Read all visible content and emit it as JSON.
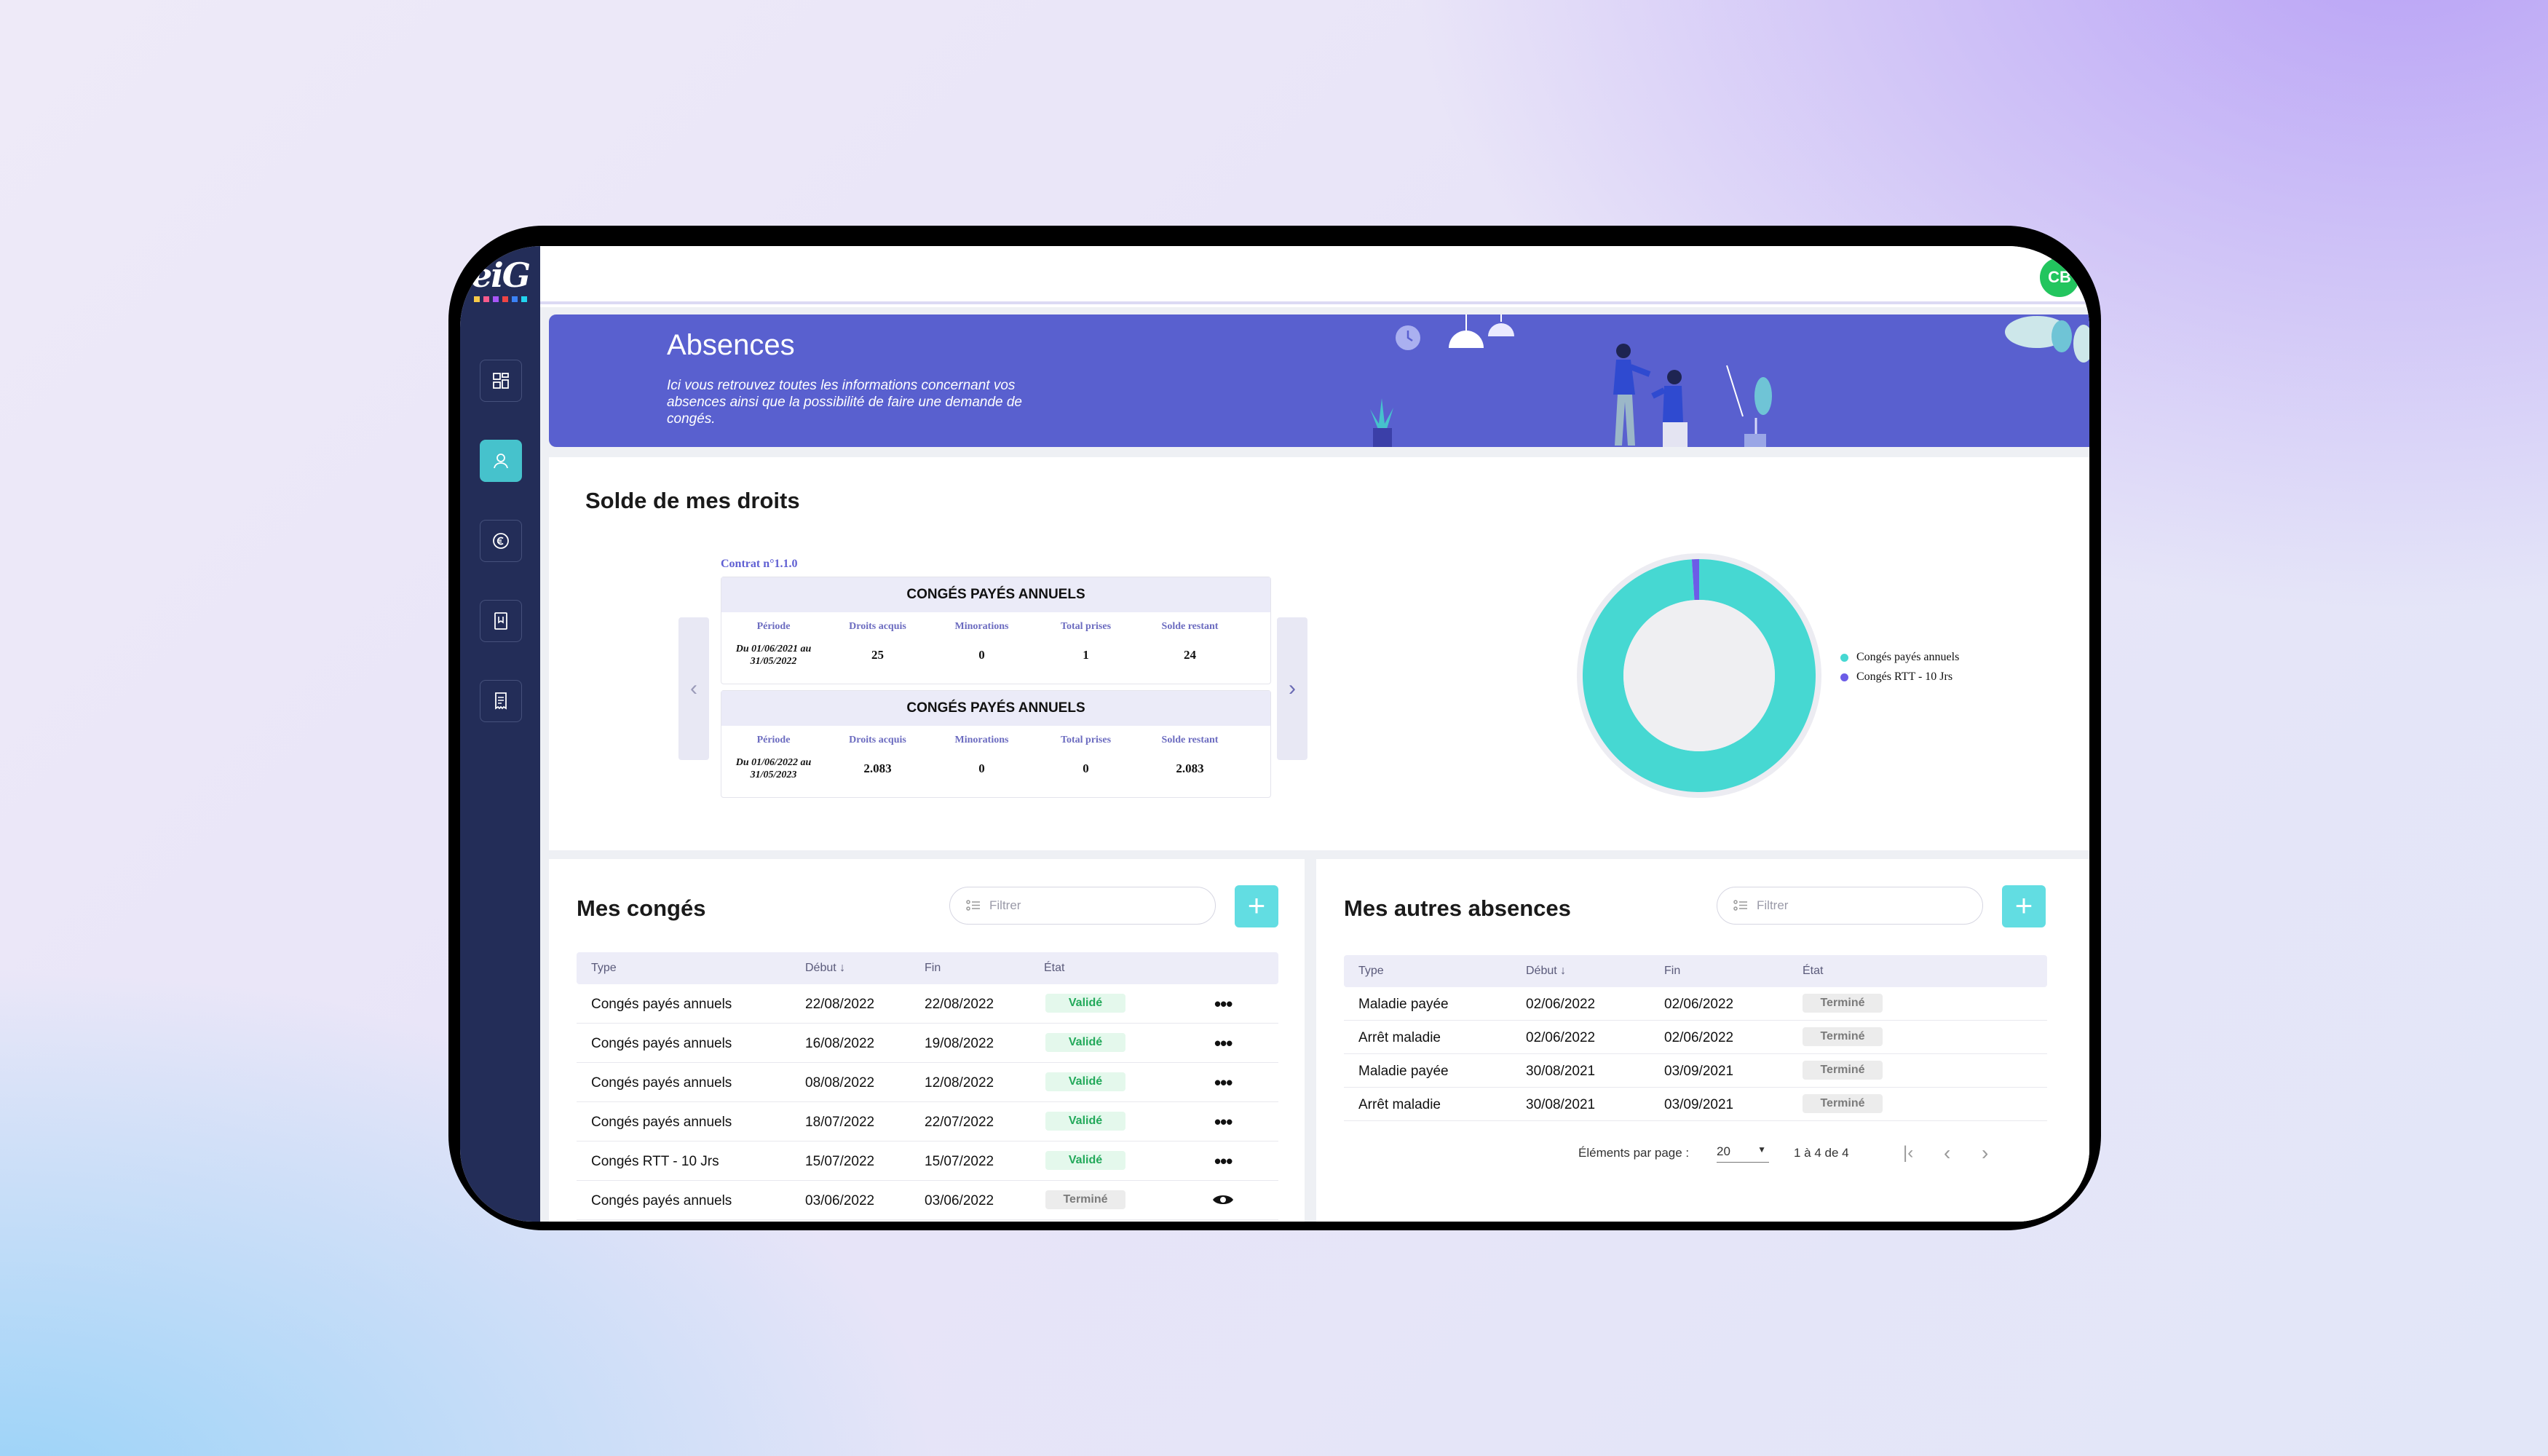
{
  "app": {
    "logo": "eiG",
    "avatar_initials": "CB"
  },
  "sidebar": {
    "items": [
      {
        "icon": "dashboard-icon"
      },
      {
        "icon": "user-icon",
        "active": true
      },
      {
        "icon": "euro-icon"
      },
      {
        "icon": "bookmark-icon"
      },
      {
        "icon": "receipt-icon"
      }
    ]
  },
  "banner": {
    "title": "Absences",
    "description": "Ici vous retrouvez toutes les informations concernant vos absences ainsi que la possibilité de faire une demande de congés."
  },
  "solde": {
    "title": "Solde de mes droits",
    "contract": "Contrat n°1.1.0",
    "columns": [
      "Période",
      "Droits acquis",
      "Minorations",
      "Total prises",
      "Solde restant"
    ],
    "tables": [
      {
        "title": "CONGÉS PAYÉS ANNUELS",
        "period": "Du 01/06/2021 au 31/05/2022",
        "acquis": "25",
        "minorations": "0",
        "prises": "1",
        "solde": "24"
      },
      {
        "title": "CONGÉS PAYÉS ANNUELS",
        "period": "Du 01/06/2022 au 31/05/2023",
        "acquis": "2.083",
        "minorations": "0",
        "prises": "0",
        "solde": "2.083"
      }
    ],
    "legend": [
      {
        "label": "Congés payés annuels",
        "color": "#46d8d2"
      },
      {
        "label": "Congés RTT - 10 Jrs",
        "color": "#6c5ce7"
      }
    ]
  },
  "chart_data": {
    "type": "pie",
    "categories": [
      "Congés payés annuels",
      "Congés RTT - 10 Jrs"
    ],
    "values": [
      99,
      1
    ],
    "colors": [
      "#46d8d2",
      "#6c5ce7"
    ],
    "legend_position": "right"
  },
  "conges": {
    "title": "Mes congés",
    "filter_placeholder": "Filtrer",
    "add_label": "+",
    "columns": [
      "Type",
      "Début",
      "Fin",
      "État"
    ],
    "rows": [
      {
        "type": "Congés payés annuels",
        "debut": "22/08/2022",
        "fin": "22/08/2022",
        "etat": "Validé"
      },
      {
        "type": "Congés payés annuels",
        "debut": "16/08/2022",
        "fin": "19/08/2022",
        "etat": "Validé"
      },
      {
        "type": "Congés payés annuels",
        "debut": "08/08/2022",
        "fin": "12/08/2022",
        "etat": "Validé"
      },
      {
        "type": "Congés payés annuels",
        "debut": "18/07/2022",
        "fin": "22/07/2022",
        "etat": "Validé"
      },
      {
        "type": "Congés RTT - 10 Jrs",
        "debut": "15/07/2022",
        "fin": "15/07/2022",
        "etat": "Validé"
      },
      {
        "type": "Congés payés annuels",
        "debut": "03/06/2022",
        "fin": "03/06/2022",
        "etat": "Terminé"
      }
    ]
  },
  "absences": {
    "title": "Mes autres absences",
    "filter_placeholder": "Filtrer",
    "add_label": "+",
    "columns": [
      "Type",
      "Début",
      "Fin",
      "État"
    ],
    "rows": [
      {
        "type": "Maladie payée",
        "debut": "02/06/2022",
        "fin": "02/06/2022",
        "etat": "Terminé"
      },
      {
        "type": "Arrêt maladie",
        "debut": "02/06/2022",
        "fin": "02/06/2022",
        "etat": "Terminé"
      },
      {
        "type": "Maladie payée",
        "debut": "30/08/2021",
        "fin": "03/09/2021",
        "etat": "Terminé"
      },
      {
        "type": "Arrêt maladie",
        "debut": "30/08/2021",
        "fin": "03/09/2021",
        "etat": "Terminé"
      }
    ],
    "pager": {
      "label": "Éléments par page :",
      "page_size": "20",
      "range": "1 à 4 de 4"
    }
  }
}
